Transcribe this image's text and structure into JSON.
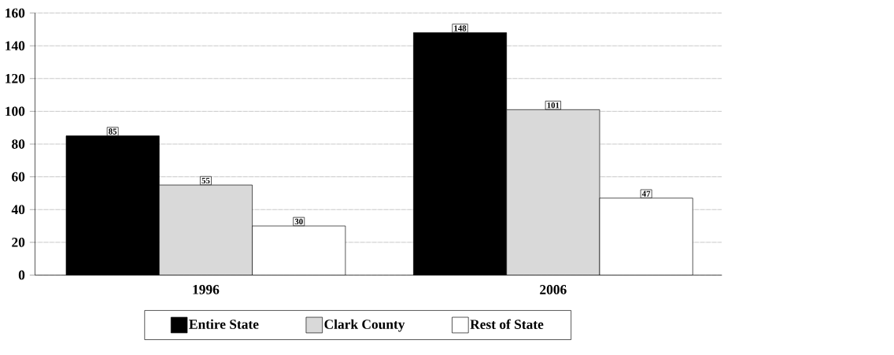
{
  "chart_data": {
    "type": "bar",
    "categories": [
      "1996",
      "2006"
    ],
    "series": [
      {
        "name": "Entire State",
        "color": "#000000",
        "values": [
          85,
          148
        ]
      },
      {
        "name": "Clark County",
        "color": "#d9d9d9",
        "values": [
          55,
          101
        ]
      },
      {
        "name": "Rest of State",
        "color": "#ffffff",
        "values": [
          30,
          47
        ]
      }
    ],
    "ylim": [
      0,
      160
    ],
    "yticks": [
      0,
      20,
      40,
      60,
      80,
      100,
      120,
      140,
      160
    ],
    "grid": "y",
    "legend": "bottom",
    "data_labels": true
  }
}
